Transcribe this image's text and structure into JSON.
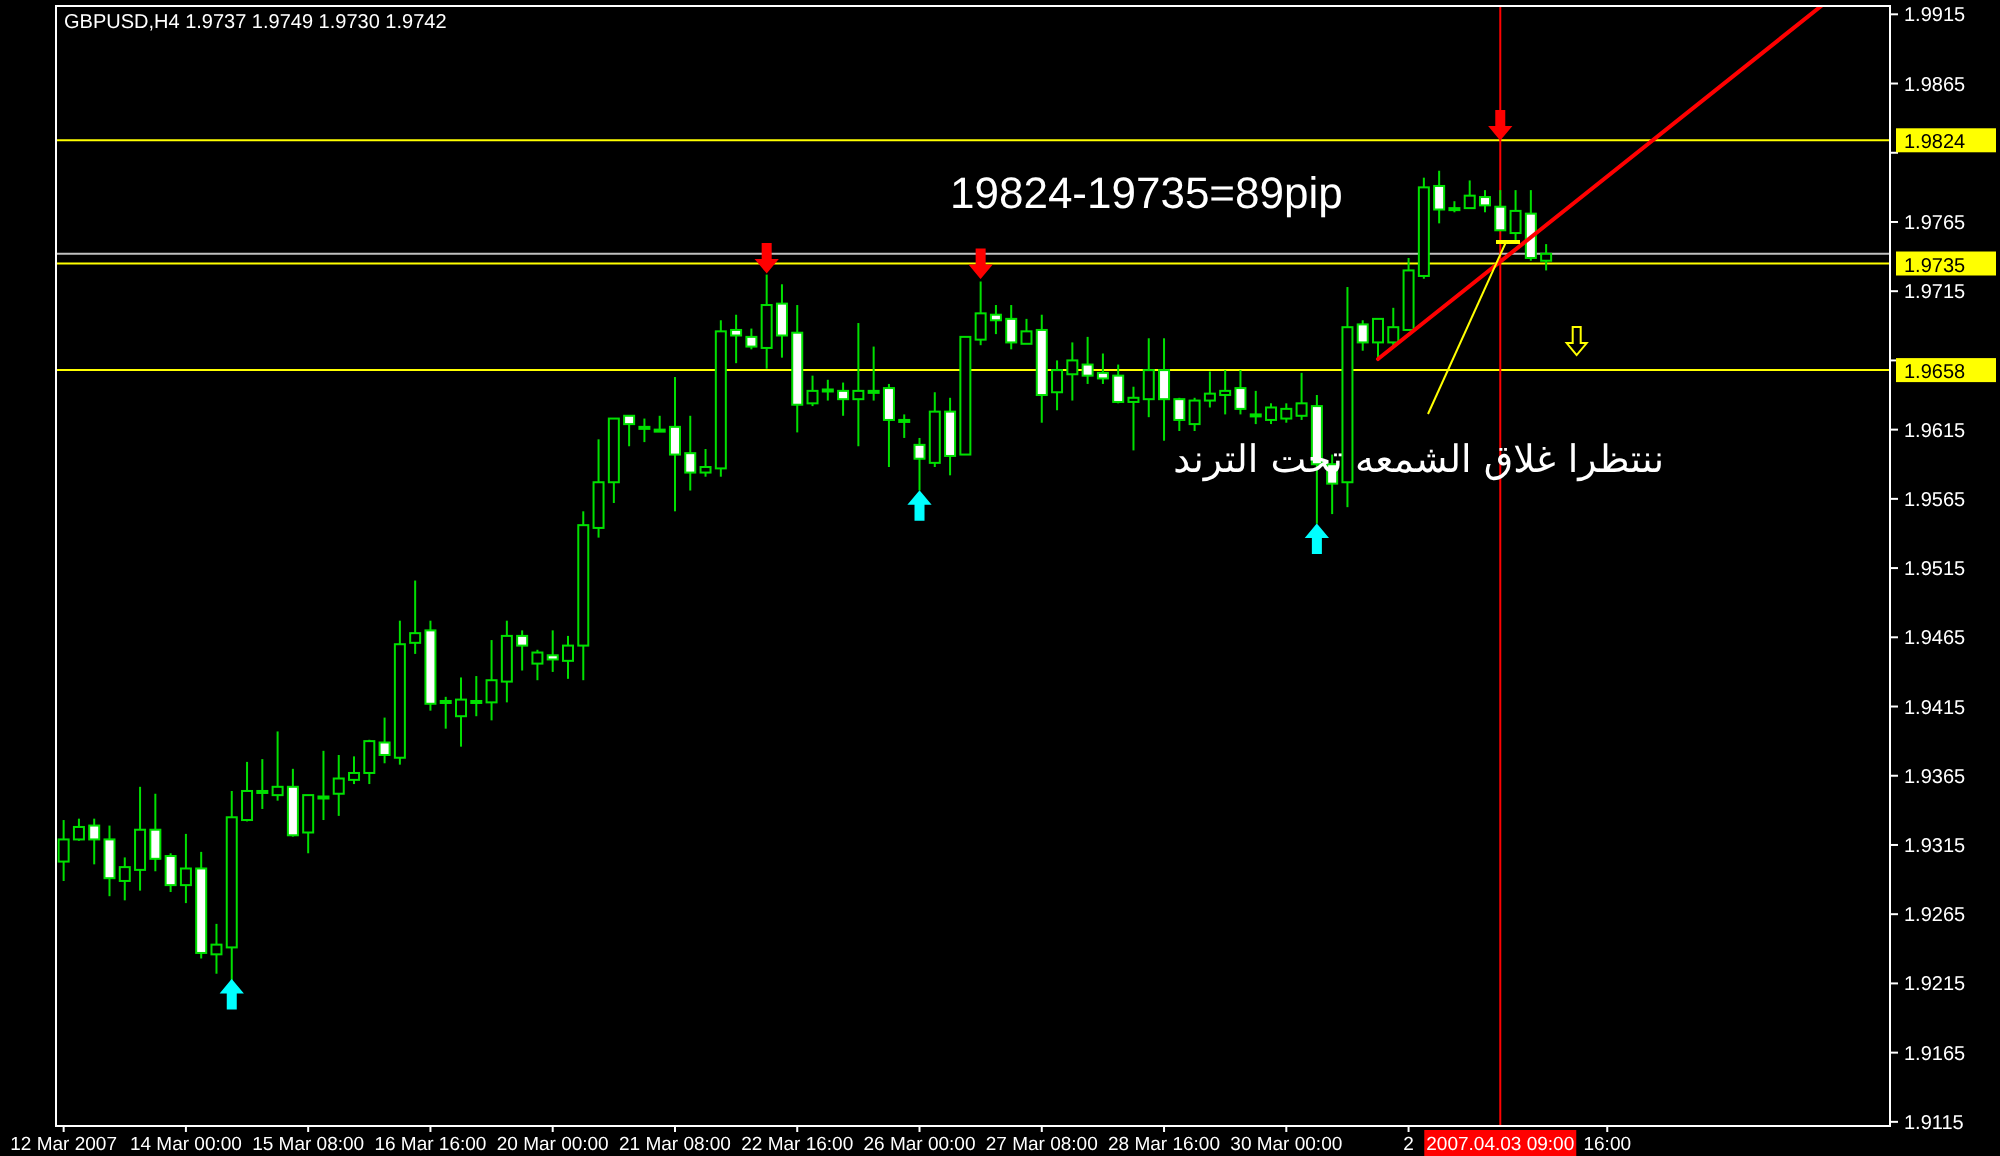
{
  "chart_data": {
    "type": "candlestick",
    "title": "GBPUSD,H4  1.9737 1.9749 1.9730 1.9742",
    "annotations": [
      "19824-19735=89pip",
      "ننتظرا غلاق الشمعه تحت الترند",
      "2007.04.03 09:00"
    ],
    "categories": [
      "12 Mar 2007",
      null,
      null,
      null,
      null,
      null,
      null,
      null,
      "14 Mar 00:00",
      null,
      null,
      null,
      null,
      null,
      null,
      null,
      "15 Mar 08:00",
      null,
      null,
      null,
      null,
      null,
      null,
      null,
      "16 Mar 16:00",
      null,
      null,
      null,
      null,
      null,
      null,
      null,
      "20 Mar 00:00",
      null,
      null,
      null,
      null,
      null,
      null,
      null,
      "21 Mar 08:00",
      null,
      null,
      null,
      null,
      null,
      null,
      null,
      "22 Mar 16:00",
      null,
      null,
      null,
      null,
      null,
      null,
      null,
      "26 Mar 00:00",
      null,
      null,
      null,
      null,
      null,
      null,
      null,
      "27 Mar 08:00",
      null,
      null,
      null,
      null,
      null,
      null,
      null,
      "28 Mar 16:00",
      null,
      null,
      null,
      null,
      null,
      null,
      null,
      "30 Mar 00:00",
      null,
      null,
      null,
      null,
      null,
      null,
      null,
      "2",
      null,
      null,
      null,
      null,
      null,
      null,
      null,
      null,
      null,
      null,
      null,
      null,
      "16:00",
      null,
      null,
      null,
      null,
      null,
      null,
      null,
      null,
      null,
      null,
      null,
      null,
      null,
      null,
      null,
      null,
      null,
      null
    ],
    "ohlc": [
      [
        1.9303,
        1.9333,
        1.9289,
        1.9319
      ],
      [
        1.9319,
        1.9334,
        1.9318,
        1.9328
      ],
      [
        1.9329,
        1.9334,
        1.9301,
        1.9319
      ],
      [
        1.9319,
        1.9329,
        1.9278,
        1.9291
      ],
      [
        1.9289,
        1.9306,
        1.9275,
        1.9299
      ],
      [
        1.9297,
        1.9357,
        1.9282,
        1.9326
      ],
      [
        1.9326,
        1.9352,
        1.9296,
        1.9305
      ],
      [
        1.9307,
        1.9309,
        1.9281,
        1.9286
      ],
      [
        1.9286,
        1.9323,
        1.9273,
        1.9298
      ],
      [
        1.9298,
        1.931,
        1.9233,
        1.9237
      ],
      [
        1.9236,
        1.9258,
        1.9222,
        1.9243
      ],
      [
        1.9241,
        1.9354,
        1.9215,
        1.9335
      ],
      [
        1.9333,
        1.9375,
        1.9332,
        1.9354
      ],
      [
        1.9354,
        1.9377,
        1.9341,
        1.9354
      ],
      [
        1.9351,
        1.9397,
        1.9347,
        1.9357
      ],
      [
        1.9357,
        1.937,
        1.9321,
        1.9322
      ],
      [
        1.9324,
        1.9351,
        1.9309,
        1.9351
      ],
      [
        1.935,
        1.9383,
        1.9333,
        1.935
      ],
      [
        1.9352,
        1.938,
        1.9336,
        1.9363
      ],
      [
        1.9362,
        1.9379,
        1.9359,
        1.9367
      ],
      [
        1.9367,
        1.9391,
        1.9359,
        1.939
      ],
      [
        1.9389,
        1.9407,
        1.9374,
        1.938
      ],
      [
        1.9378,
        1.9477,
        1.9373,
        1.946
      ],
      [
        1.9461,
        1.9506,
        1.9453,
        1.9468
      ],
      [
        1.947,
        1.9477,
        1.9412,
        1.9417
      ],
      [
        1.9419,
        1.9422,
        1.9399,
        1.9419
      ],
      [
        1.9408,
        1.9436,
        1.9386,
        1.942
      ],
      [
        1.9419,
        1.9437,
        1.9408,
        1.9419
      ],
      [
        1.9418,
        1.9463,
        1.9405,
        1.9434
      ],
      [
        1.9433,
        1.9477,
        1.9418,
        1.9466
      ],
      [
        1.9466,
        1.947,
        1.9441,
        1.9459
      ],
      [
        1.9446,
        1.9456,
        1.9434,
        1.9454
      ],
      [
        1.9452,
        1.947,
        1.944,
        1.9449
      ],
      [
        1.9448,
        1.9466,
        1.9435,
        1.9459
      ],
      [
        1.9459,
        1.9556,
        1.9434,
        1.9546
      ],
      [
        1.9544,
        1.9608,
        1.9537,
        1.9577
      ],
      [
        1.9577,
        1.9623,
        1.9562,
        1.9623
      ],
      [
        1.9625,
        1.9625,
        1.9603,
        1.9619
      ],
      [
        1.9617,
        1.9623,
        1.9606,
        1.9617
      ],
      [
        1.9615,
        1.9625,
        1.9614,
        1.9615
      ],
      [
        1.9617,
        1.9653,
        1.9556,
        1.9597
      ],
      [
        1.9598,
        1.9625,
        1.9571,
        1.9584
      ],
      [
        1.9584,
        1.9601,
        1.9581,
        1.9588
      ],
      [
        1.9587,
        1.9694,
        1.9581,
        1.9686
      ],
      [
        1.9687,
        1.9698,
        1.9663,
        1.9683
      ],
      [
        1.9682,
        1.9688,
        1.9673,
        1.9675
      ],
      [
        1.9674,
        1.9727,
        1.9659,
        1.9705
      ],
      [
        1.9706,
        1.972,
        1.9667,
        1.9683
      ],
      [
        1.9685,
        1.9705,
        1.9613,
        1.9633
      ],
      [
        1.9634,
        1.9654,
        1.9632,
        1.9643
      ],
      [
        1.9644,
        1.9651,
        1.9636,
        1.9644
      ],
      [
        1.9643,
        1.9649,
        1.9625,
        1.9637
      ],
      [
        1.9637,
        1.9692,
        1.9603,
        1.9643
      ],
      [
        1.9643,
        1.9675,
        1.9636,
        1.9643
      ],
      [
        1.9645,
        1.9648,
        1.9588,
        1.9622
      ],
      [
        1.9622,
        1.9626,
        1.9609,
        1.9622
      ],
      [
        1.9604,
        1.9609,
        1.9571,
        1.9594
      ],
      [
        1.9591,
        1.9642,
        1.9588,
        1.9628
      ],
      [
        1.9628,
        1.9638,
        1.9582,
        1.9596
      ],
      [
        1.9597,
        1.9682,
        1.9597,
        1.9682
      ],
      [
        1.968,
        1.9722,
        1.9676,
        1.9699
      ],
      [
        1.9698,
        1.9705,
        1.9684,
        1.9694
      ],
      [
        1.9695,
        1.9705,
        1.9673,
        1.9678
      ],
      [
        1.9677,
        1.9695,
        1.9677,
        1.9686
      ],
      [
        1.9687,
        1.9698,
        1.962,
        1.964
      ],
      [
        1.9642,
        1.9665,
        1.9629,
        1.9658
      ],
      [
        1.9655,
        1.9678,
        1.9636,
        1.9665
      ],
      [
        1.9662,
        1.9682,
        1.9648,
        1.9654
      ],
      [
        1.9656,
        1.967,
        1.9648,
        1.9652
      ],
      [
        1.9654,
        1.9662,
        1.9634,
        1.9635
      ],
      [
        1.9635,
        1.9646,
        1.96,
        1.9638
      ],
      [
        1.9637,
        1.9681,
        1.9624,
        1.9658
      ],
      [
        1.9658,
        1.9681,
        1.9607,
        1.9637
      ],
      [
        1.9637,
        1.9638,
        1.9614,
        1.9622
      ],
      [
        1.9619,
        1.9638,
        1.9614,
        1.9636
      ],
      [
        1.9636,
        1.9657,
        1.9631,
        1.9641
      ],
      [
        1.964,
        1.9658,
        1.9626,
        1.9643
      ],
      [
        1.9645,
        1.9658,
        1.9626,
        1.963
      ],
      [
        1.9626,
        1.9643,
        1.9619,
        1.9626
      ],
      [
        1.9622,
        1.9634,
        1.9619,
        1.9631
      ],
      [
        1.9623,
        1.9634,
        1.962,
        1.963
      ],
      [
        1.9625,
        1.9656,
        1.9622,
        1.9634
      ],
      [
        1.9632,
        1.964,
        1.9547,
        1.959
      ],
      [
        1.959,
        1.9597,
        1.9554,
        1.9576
      ],
      [
        1.9577,
        1.9718,
        1.9559,
        1.9689
      ],
      [
        1.9691,
        1.9694,
        1.9672,
        1.9678
      ],
      [
        1.9678,
        1.9695,
        1.9665,
        1.9695
      ],
      [
        1.9678,
        1.9703,
        1.9674,
        1.9689
      ],
      [
        1.9687,
        1.9739,
        1.9687,
        1.973
      ],
      [
        1.9726,
        1.9797,
        1.9724,
        1.979
      ],
      [
        1.9791,
        1.9802,
        1.9764,
        1.9774
      ],
      [
        1.9775,
        1.978,
        1.9772,
        1.9775
      ],
      [
        1.9775,
        1.9795,
        1.9775,
        1.9784
      ],
      [
        1.9783,
        1.9788,
        1.9772,
        1.9777
      ],
      [
        1.9776,
        1.9788,
        1.9759,
        1.9759
      ],
      [
        1.9757,
        1.9788,
        1.9752,
        1.9773
      ],
      [
        1.9771,
        1.9788,
        1.9737,
        1.9739
      ],
      [
        1.9737,
        1.9749,
        1.973,
        1.9742
      ],
      null,
      null,
      null,
      null,
      null,
      null,
      null,
      null,
      null,
      null,
      null,
      null,
      null,
      null,
      null,
      null,
      null,
      null,
      null,
      null,
      null,
      null
    ],
    "series": [
      {
        "type": "line",
        "color": "#ff0000",
        "values": [
          null,
          null,
          null,
          null,
          null,
          null,
          null,
          null,
          null,
          null,
          null,
          null,
          null,
          null,
          null,
          null,
          null,
          null,
          null,
          null,
          null,
          null,
          null,
          null,
          null,
          null,
          null,
          null,
          null,
          null,
          null,
          null,
          null,
          null,
          null,
          null,
          null,
          null,
          null,
          null,
          null,
          null,
          null,
          null,
          null,
          null,
          null,
          null,
          null,
          null,
          null,
          null,
          null,
          null,
          null,
          null,
          null,
          null,
          null,
          null,
          null,
          null,
          null,
          null,
          null,
          null,
          null,
          null,
          null,
          null,
          null,
          null,
          null,
          null,
          null,
          null,
          null,
          null,
          null,
          null,
          null,
          null,
          null,
          null,
          null,
          null,
          1.9666,
          null,
          null,
          null,
          null,
          null,
          null,
          null,
          null,
          null,
          null,
          null,
          null,
          null,
          null,
          null,
          null,
          null,
          null,
          null,
          null,
          null,
          null,
          null,
          null,
          null,
          null,
          null,
          null,
          1.9921,
          null,
          null,
          null,
          null
        ]
      },
      {
        "type": "scatter",
        "color": "#00ffff",
        "values": [
          null,
          null,
          null,
          null,
          null,
          null,
          null,
          null,
          null,
          null,
          null,
          1.9207,
          null,
          null,
          null,
          null,
          null,
          null,
          null,
          null,
          null,
          null,
          null,
          null,
          null,
          null,
          null,
          null,
          null,
          null,
          null,
          null,
          null,
          null,
          null,
          null,
          null,
          null,
          null,
          null,
          null,
          null,
          null,
          null,
          null,
          null,
          null,
          null,
          null,
          null,
          null,
          null,
          null,
          null,
          null,
          null,
          1.956,
          null,
          null,
          null,
          null,
          null,
          null,
          null,
          null,
          null,
          null,
          null,
          null,
          null,
          null,
          null,
          null,
          null,
          null,
          null,
          null,
          null,
          null,
          null,
          null,
          null,
          1.9536,
          null,
          null,
          null,
          null,
          null,
          null,
          null,
          null,
          null,
          null,
          null,
          null,
          null,
          null,
          null,
          null,
          null,
          null,
          null,
          null,
          null,
          null,
          null,
          null,
          null,
          null,
          null,
          null,
          null,
          null,
          null,
          null,
          null,
          null,
          null,
          null,
          null
        ]
      },
      {
        "type": "scatter",
        "color": "#ff0000",
        "values": [
          null,
          null,
          null,
          null,
          null,
          null,
          null,
          null,
          null,
          null,
          null,
          null,
          null,
          null,
          null,
          null,
          null,
          null,
          null,
          null,
          null,
          null,
          null,
          null,
          null,
          null,
          null,
          null,
          null,
          null,
          null,
          null,
          null,
          null,
          null,
          null,
          null,
          null,
          null,
          null,
          null,
          null,
          null,
          null,
          null,
          null,
          1.9739,
          null,
          null,
          null,
          null,
          null,
          null,
          null,
          null,
          null,
          null,
          null,
          null,
          null,
          1.9735,
          null,
          null,
          null,
          null,
          null,
          null,
          null,
          null,
          null,
          null,
          null,
          null,
          null,
          null,
          null,
          null,
          null,
          null,
          null,
          null,
          null,
          null,
          null,
          null,
          null,
          null,
          null,
          null,
          null,
          null,
          null,
          null,
          null,
          1.9835,
          null,
          null,
          null,
          null,
          null,
          null,
          null,
          null,
          null,
          null,
          null,
          null,
          null,
          null,
          null,
          null,
          null,
          null,
          null,
          null,
          null,
          null,
          null,
          null,
          null
        ]
      },
      {
        "type": "scatter",
        "color": "#ffff00",
        "values": [
          null,
          null,
          null,
          null,
          null,
          null,
          null,
          null,
          null,
          null,
          null,
          null,
          null,
          null,
          null,
          null,
          null,
          null,
          null,
          null,
          null,
          null,
          null,
          null,
          null,
          null,
          null,
          null,
          null,
          null,
          null,
          null,
          null,
          null,
          null,
          null,
          null,
          null,
          null,
          null,
          null,
          null,
          null,
          null,
          null,
          null,
          null,
          null,
          null,
          null,
          null,
          null,
          null,
          null,
          null,
          null,
          null,
          null,
          null,
          null,
          null,
          null,
          null,
          null,
          null,
          null,
          null,
          null,
          null,
          null,
          null,
          null,
          null,
          null,
          null,
          null,
          null,
          null,
          null,
          null,
          null,
          null,
          null,
          null,
          null,
          null,
          null,
          null,
          null,
          null,
          null,
          null,
          null,
          null,
          null,
          null,
          null,
          null,
          null,
          1.9679,
          null,
          null,
          null,
          null,
          null,
          null,
          null,
          null,
          null,
          null,
          null,
          null,
          null,
          null,
          null,
          null,
          null,
          null,
          null,
          null
        ]
      }
    ],
    "ylim": [
      1.9112,
      1.9921
    ],
    "yticks": [
      1.9915,
      1.9865,
      {
        "value": 1.9815,
        "label": null
      },
      1.9765,
      1.9715,
      {
        "value": 1.9665,
        "label": null
      },
      1.9615,
      1.9565,
      1.9515,
      1.9465,
      1.9415,
      1.9365,
      1.9315,
      1.9265,
      1.9215,
      1.9165,
      1.9115
    ],
    "ref_lines": [
      {
        "axis": "y",
        "value": 1.9824,
        "label": "1.9824",
        "color": "#ffff00"
      },
      {
        "axis": "y",
        "value": 1.9742,
        "color": "#c0c0c0"
      },
      {
        "axis": "y",
        "value": 1.9735,
        "label": "1.9735",
        "color": "#ffff00"
      },
      {
        "axis": "y",
        "value": 1.9658,
        "label": "1.9658",
        "color": "#ffff00"
      }
    ]
  }
}
